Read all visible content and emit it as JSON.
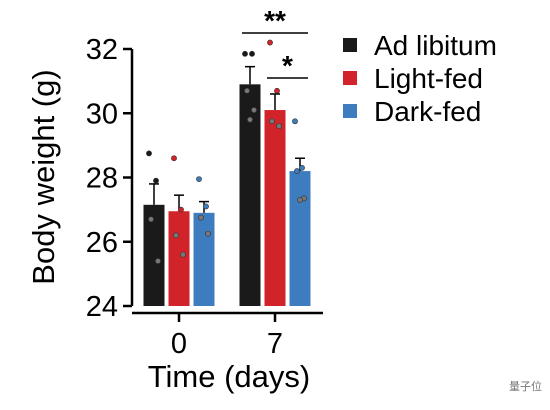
{
  "chart_data": {
    "type": "bar",
    "title": "",
    "ylabel": "Body weight (g)",
    "xlabel": "Time (days)",
    "ylim": [
      24,
      32
    ],
    "yticks": [
      24,
      26,
      28,
      30,
      32
    ],
    "categories": [
      "0",
      "7"
    ],
    "legend_position": "top-right",
    "series": [
      {
        "name": "Ad libitum",
        "color": "#1a1a1a",
        "values": [
          27.15,
          30.9
        ],
        "errors": [
          0.65,
          0.55
        ],
        "points": [
          [
            28.75,
            27.9,
            26.7,
            25.4
          ],
          [
            31.85,
            31.85,
            30.7,
            30.1,
            29.8
          ]
        ]
      },
      {
        "name": "Light-fed",
        "color": "#d2232a",
        "values": [
          26.95,
          30.1
        ],
        "errors": [
          0.5,
          0.5
        ],
        "points": [
          [
            28.6,
            27.0,
            26.2,
            25.6
          ],
          [
            32.2,
            30.7,
            29.75,
            29.6
          ]
        ]
      },
      {
        "name": "Dark-fed",
        "color": "#3e7cc0",
        "values": [
          26.9,
          28.2
        ],
        "errors": [
          0.35,
          0.4
        ],
        "points": [
          [
            27.95,
            27.1,
            26.75,
            26.25
          ],
          [
            29.75,
            28.3,
            28.2,
            27.35,
            27.3
          ]
        ]
      }
    ],
    "significance": [
      {
        "label": "**",
        "from_series": 0,
        "to_series": 2,
        "category": "7"
      },
      {
        "label": "*",
        "from_series": 1,
        "to_series": 2,
        "category": "7"
      }
    ]
  },
  "watermark": "量子位"
}
